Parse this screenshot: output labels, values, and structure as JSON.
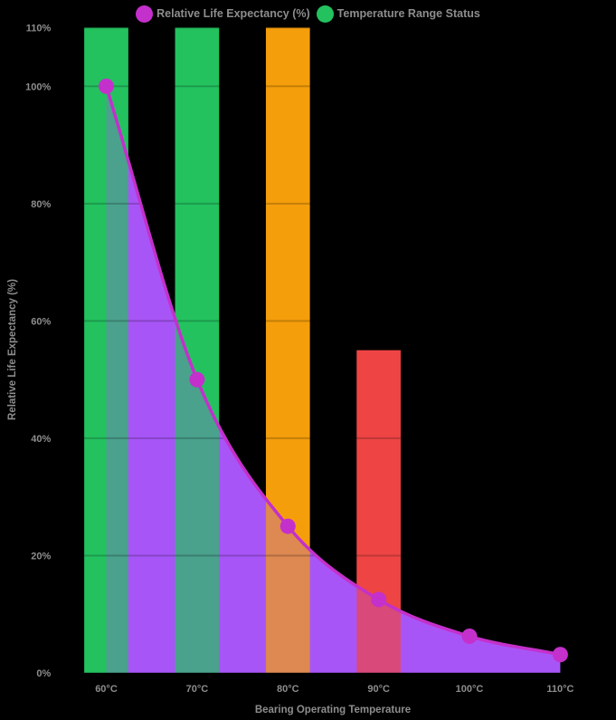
{
  "colors": {
    "background": "#000000",
    "text": "#8d8d8d",
    "grid_overlay": "rgba(0,0,0,0.2)"
  },
  "legend": {
    "items": [
      {
        "label": "Relative Life Expectancy (%)",
        "color": "#c430cb"
      },
      {
        "label": "Temperature Range Status",
        "color": "#23c25f"
      }
    ]
  },
  "chart_data": {
    "type": "mixed",
    "categories": [
      "60°C",
      "70°C",
      "80°C",
      "90°C",
      "100°C",
      "110°C"
    ],
    "series": [
      {
        "name": "Relative Life Expectancy (%)",
        "type": "line",
        "values": [
          100,
          50,
          25,
          12.5,
          6.25,
          3.125
        ],
        "color": "#c430cb",
        "area_color": "#a855f7",
        "point_style": "circle",
        "area_fill": true
      },
      {
        "name": "Temperature Range Status",
        "type": "bar",
        "values": [
          110,
          110,
          110,
          55,
          null,
          null
        ],
        "colors": [
          "#23c25f",
          "#23c25f",
          "#f59e0b",
          "#ee4444",
          null,
          null
        ]
      }
    ],
    "xlabel": "Bearing Operating Temperature",
    "ylabel": "Relative Life Expectancy (%)",
    "y_ticks": [
      {
        "value": 0,
        "label": "0%"
      },
      {
        "value": 20,
        "label": "20%"
      },
      {
        "value": 40,
        "label": "40%"
      },
      {
        "value": 60,
        "label": "60%"
      },
      {
        "value": 80,
        "label": "80%"
      },
      {
        "value": 100,
        "label": "100%"
      },
      {
        "value": 110,
        "label": "110%"
      }
    ],
    "ylim": [
      0,
      110
    ],
    "grid": "subtle dark gridlines over series only",
    "legend_position": "top"
  }
}
